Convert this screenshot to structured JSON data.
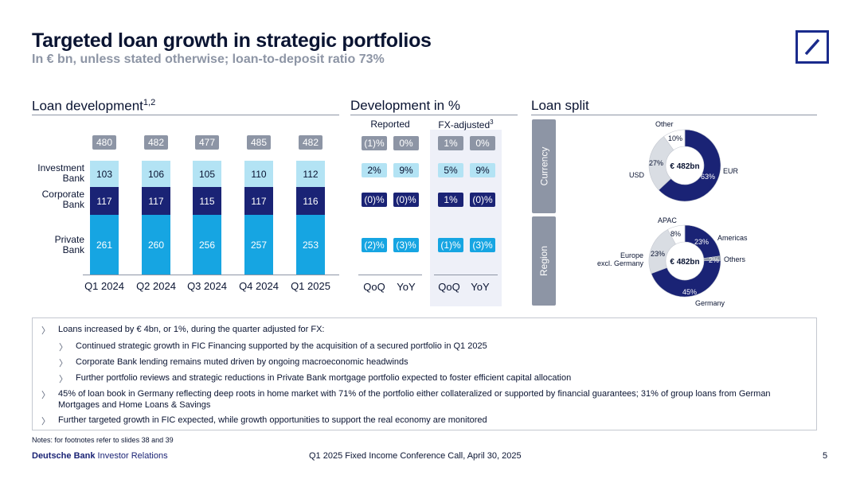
{
  "header": {
    "title": "Targeted loan growth in strategic portfolios",
    "subtitle": "In € bn, unless stated otherwise; loan-to-deposit ratio 73%"
  },
  "loan_development": {
    "heading": "Loan development",
    "heading_sup": "1,2",
    "row_labels": {
      "ib": [
        "Investment",
        "Bank"
      ],
      "cb": [
        "Corporate",
        "Bank"
      ],
      "pb": [
        "Private",
        "Bank"
      ]
    }
  },
  "development_pct": {
    "heading": "Development in %",
    "reported_label": "Reported",
    "fx_label": "FX-adjusted",
    "fx_sup": "3",
    "axis_labels": [
      "QoQ",
      "YoY",
      "QoQ",
      "YoY"
    ],
    "rows": [
      {
        "kind": "grey",
        "values": [
          "(1)%",
          "0%",
          "1%",
          "0%"
        ]
      },
      {
        "kind": "ib",
        "values": [
          "2%",
          "9%",
          "5%",
          "9%"
        ]
      },
      {
        "kind": "cb",
        "values": [
          "(0)%",
          "(0)%",
          "1%",
          "(0)%"
        ]
      },
      {
        "kind": "pb",
        "values": [
          "(2)%",
          "(3)%",
          "(1)%",
          "(3)%"
        ]
      }
    ]
  },
  "loan_split": {
    "heading": "Loan split",
    "currency_tab": "Currency",
    "region_tab": "Region",
    "center_label": "€ 482bn",
    "currency": {
      "slices": [
        {
          "name": "EUR",
          "pct": 63,
          "label": "63%",
          "color": "#1a2375"
        },
        {
          "name": "USD",
          "pct": 27,
          "label": "27%",
          "color": "#d9dde3"
        },
        {
          "name": "Other",
          "pct": 10,
          "label": "10%",
          "color": "#ffffff"
        }
      ]
    },
    "region": {
      "slices": [
        {
          "name": "Americas",
          "pct": 23,
          "label": "23%",
          "color": "#1a2375"
        },
        {
          "name": "Others",
          "pct": 2,
          "label": "2%",
          "color": "#8d95a5"
        },
        {
          "name": "Germany",
          "pct": 45,
          "label": "45%",
          "color": "#1a2375"
        },
        {
          "name": "Europe excl. Germany",
          "pct": 23,
          "label": "23%",
          "color": "#d9dde3"
        },
        {
          "name": "APAC",
          "pct": 8,
          "label": "8%",
          "color": "#ffffff"
        }
      ],
      "europe_label_lines": [
        "Europe",
        "excl. Germany"
      ]
    }
  },
  "chart_data": {
    "type": "bar",
    "stacked": true,
    "categories": [
      "Q1 2024",
      "Q2 2024",
      "Q3 2024",
      "Q4 2024",
      "Q1 2025"
    ],
    "totals": [
      "480",
      "482",
      "477",
      "485",
      "482"
    ],
    "series": [
      {
        "name": "Private Bank",
        "values": [
          261,
          260,
          256,
          257,
          253
        ]
      },
      {
        "name": "Corporate Bank",
        "values": [
          117,
          117,
          115,
          117,
          116
        ]
      },
      {
        "name": "Investment Bank",
        "values": [
          103,
          106,
          105,
          110,
          112
        ]
      }
    ],
    "title": "Loan development"
  },
  "bullets": [
    {
      "level": 1,
      "text": "Loans increased by € 4bn, or 1%, during the quarter adjusted for FX:"
    },
    {
      "level": 2,
      "text": "Continued strategic growth in FIC Financing supported by the acquisition of a secured portfolio in Q1 2025"
    },
    {
      "level": 2,
      "text": "Corporate Bank lending remains muted driven by ongoing macroeconomic headwinds"
    },
    {
      "level": 2,
      "text": "Further portfolio reviews and strategic reductions in Private Bank mortgage portfolio expected to foster efficient capital allocation"
    },
    {
      "level": 1,
      "text": "45% of loan book in Germany reflecting deep roots in home market with 71% of the portfolio either collateralized or supported by financial guarantees; 31% of group loans from German Mortgages and Home Loans & Savings"
    },
    {
      "level": 1,
      "text": "Further targeted growth in FIC expected, while growth opportunities to support the real economy are monitored"
    }
  ],
  "bullet_glyph": "〉",
  "footer": {
    "notes": "Notes: for footnotes refer to slides 38 and 39",
    "brand_bold": "Deutsche Bank",
    "brand_rest": " Investor Relations",
    "center": "Q1 2025 Fixed Income Conference Call, April 30, 2025",
    "page": "5"
  }
}
